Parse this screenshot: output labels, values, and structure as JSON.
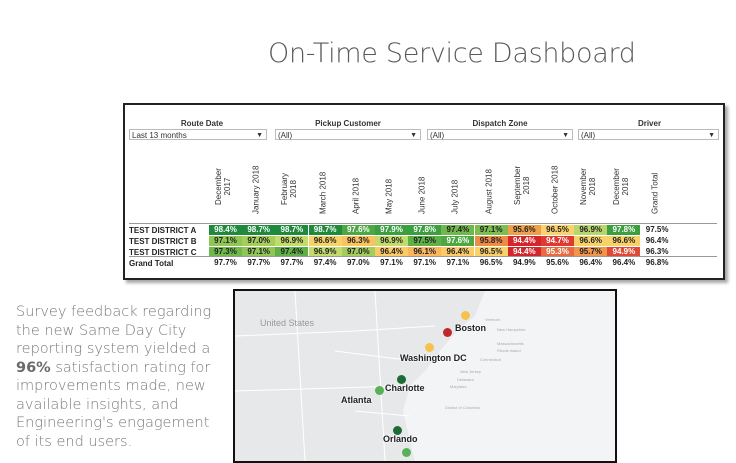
{
  "title": "On-Time Service Dashboard",
  "filters": [
    {
      "label": "Route Date",
      "value": "Last 13 months"
    },
    {
      "label": "Pickup Customer",
      "value": "(All)"
    },
    {
      "label": "Dispatch Zone",
      "value": "(All)"
    },
    {
      "label": "Driver",
      "value": "(All)"
    }
  ],
  "columns": [
    "December\n2017",
    "January 2018",
    "February\n2018",
    "March 2018",
    "April 2018",
    "May 2018",
    "June 2018",
    "July 2018",
    "August 2018",
    "September\n2018",
    "October 2018",
    "November\n2018",
    "December\n2018",
    "Grand Total"
  ],
  "rows": [
    {
      "label": "TEST DISTRICT A",
      "values": [
        "98.4%",
        "98.7%",
        "98.7%",
        "98.7%",
        "97.6%",
        "97.9%",
        "97.8%",
        "97.4%",
        "97.1%",
        "95.6%",
        "96.5%",
        "96.9%",
        "97.8%",
        "97.5%"
      ],
      "colors": [
        "#1f8a3b",
        "#1f8a3b",
        "#1f8a3b",
        "#1f8a3b",
        "#4da843",
        "#3c9f3f",
        "#3c9f3f",
        "#6fb94b",
        "#7cbf4e",
        "#f0a04b",
        "#fbd36a",
        "#b9d66a",
        "#3c9f3f",
        "#ffffff"
      ]
    },
    {
      "label": "TEST DISTRICT B",
      "values": [
        "97.1%",
        "97.0%",
        "96.9%",
        "96.6%",
        "96.3%",
        "96.9%",
        "97.5%",
        "97.6%",
        "95.8%",
        "94.4%",
        "94.7%",
        "96.6%",
        "96.6%",
        "96.4%"
      ],
      "colors": [
        "#8fc655",
        "#a4cd5c",
        "#c3da6c",
        "#f6d36a",
        "#fcc262",
        "#c3da6c",
        "#5fb147",
        "#4da843",
        "#ec8c48",
        "#d3262c",
        "#dd3a33",
        "#f6d36a",
        "#f6d36a",
        "#ffffff"
      ]
    },
    {
      "label": "TEST DISTRICT C",
      "values": [
        "97.3%",
        "97.1%",
        "97.4%",
        "96.9%",
        "97.0%",
        "96.4%",
        "96.1%",
        "96.4%",
        "96.5%",
        "94.4%",
        "95.3%",
        "95.7%",
        "94.9%",
        "96.3%"
      ],
      "colors": [
        "#6fb94b",
        "#8fc655",
        "#5fb147",
        "#c3da6c",
        "#a4cd5c",
        "#fdca66",
        "#fbb65e",
        "#fdca66",
        "#fcd168",
        "#d3262c",
        "#e86a40",
        "#f0954a",
        "#de4a36",
        "#ffffff"
      ]
    },
    {
      "label": "Grand Total",
      "values": [
        "97.7%",
        "97.7%",
        "97.7%",
        "97.4%",
        "97.0%",
        "97.1%",
        "97.1%",
        "97.1%",
        "96.5%",
        "94.9%",
        "95.6%",
        "96.4%",
        "96.4%",
        "96.8%"
      ],
      "colors": [
        "#ffffff",
        "#ffffff",
        "#ffffff",
        "#ffffff",
        "#ffffff",
        "#ffffff",
        "#ffffff",
        "#ffffff",
        "#ffffff",
        "#ffffff",
        "#ffffff",
        "#ffffff",
        "#ffffff",
        "#ffffff"
      ]
    }
  ],
  "survey": {
    "before": "Survey feedback regarding the new Same Day City reporting system yielded a ",
    "highlight": "96%",
    "after": " satisfaction rating for improvements made, new available insights, and Engineering's engagement of its end users."
  },
  "map": {
    "base_labels": [
      "United States",
      "Vermont",
      "New Hampshire",
      "Massachusetts",
      "Rhode Island",
      "Connecticut",
      "New Jersey",
      "Delaware",
      "Maryland",
      "District of Columbia"
    ],
    "cities": [
      {
        "name": "Boston",
        "color": "#c0272d"
      },
      {
        "name": "Washington DC",
        "color": "#f6c24d"
      },
      {
        "name": "Charlotte",
        "color": "#1e6b34"
      },
      {
        "name": "Atlanta",
        "color": "#59b157"
      },
      {
        "name": "Orlando",
        "color": "#1e6b34"
      }
    ],
    "extra_dots": [
      {
        "color": "#f6c24d"
      },
      {
        "color": "#59b157"
      }
    ]
  }
}
